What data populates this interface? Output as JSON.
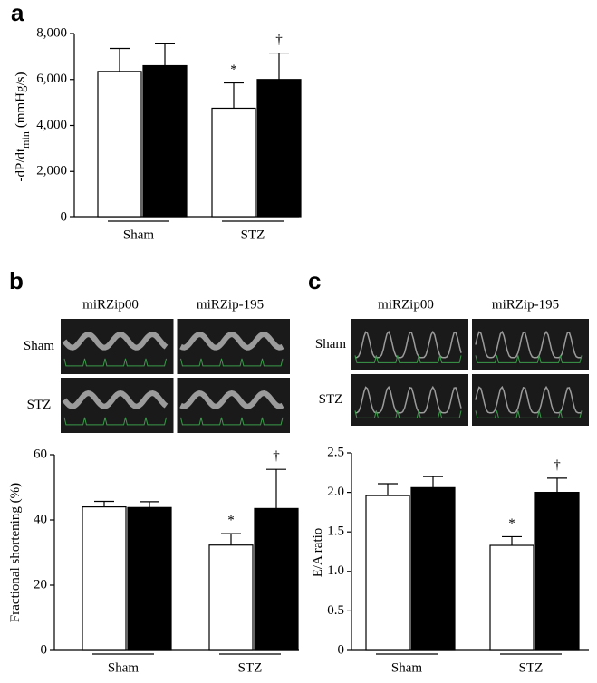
{
  "chart_data": [
    {
      "type": "bar",
      "panel": "a",
      "ylabel": "-dP/dt",
      "ylabel_subscript": "min",
      "ylabel_unit": "(mmHg/s)",
      "categories": [
        "Sham",
        "STZ"
      ],
      "series": [
        {
          "color": "#ffffff",
          "values": [
            6350,
            4750
          ],
          "errors": [
            1000,
            1100
          ]
        },
        {
          "color": "#000000",
          "values": [
            6600,
            6000
          ],
          "errors": [
            950,
            1150
          ]
        }
      ],
      "annotations": [
        {
          "text": "*",
          "series": 0,
          "category": 1
        },
        {
          "text": "†",
          "series": 1,
          "category": 1
        }
      ],
      "ylim": [
        0,
        8000
      ],
      "yticks": [
        0,
        {
          "value": 2000,
          "label": "2,000"
        },
        {
          "value": 4000,
          "label": "4,000"
        },
        {
          "value": 6000,
          "label": "6,000"
        },
        {
          "value": 8000,
          "label": "8,000"
        }
      ]
    },
    {
      "type": "bar",
      "panel": "b",
      "image_panel": {
        "columns": [
          "miRZip00",
          "miRZip-195"
        ],
        "rows": [
          "Sham",
          "STZ"
        ]
      },
      "ylabel": "Fractional shortening (%)",
      "categories": [
        "Sham",
        "STZ"
      ],
      "series": [
        {
          "color": "#ffffff",
          "values": [
            44,
            32.3
          ],
          "errors": [
            1.7,
            3.5
          ]
        },
        {
          "color": "#000000",
          "values": [
            43.8,
            43.5
          ],
          "errors": [
            1.8,
            12
          ]
        }
      ],
      "annotations": [
        {
          "text": "*",
          "series": 0,
          "category": 1
        },
        {
          "text": "†",
          "series": 1,
          "category": 1
        }
      ],
      "ylim": [
        0,
        60
      ],
      "yticks": [
        0,
        20,
        40,
        60
      ]
    },
    {
      "type": "bar",
      "panel": "c",
      "image_panel": {
        "columns": [
          "miRZip00",
          "miRZip-195"
        ],
        "rows": [
          "Sham",
          "STZ"
        ]
      },
      "ylabel": "E/A ratio",
      "categories": [
        "Sham",
        "STZ"
      ],
      "series": [
        {
          "color": "#ffffff",
          "values": [
            1.96,
            1.33
          ],
          "errors": [
            0.15,
            0.11
          ]
        },
        {
          "color": "#000000",
          "values": [
            2.06,
            2.0
          ],
          "errors": [
            0.14,
            0.18
          ]
        }
      ],
      "annotations": [
        {
          "text": "*",
          "series": 0,
          "category": 1
        },
        {
          "text": "†",
          "series": 1,
          "category": 1
        }
      ],
      "ylim": [
        0,
        2.5
      ],
      "yticks": [
        0,
        0.5,
        {
          "value": 1,
          "label": "1.0"
        },
        1.5,
        {
          "value": 2,
          "label": "2.0"
        },
        2.5
      ]
    }
  ]
}
